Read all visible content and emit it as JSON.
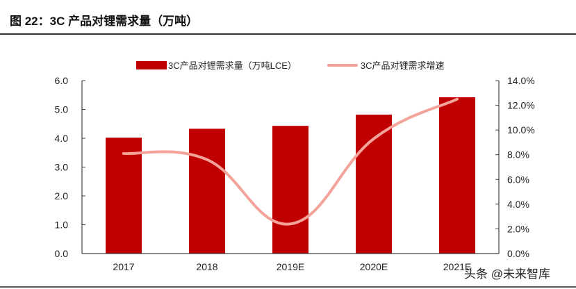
{
  "title": "图 22：3C 产品对锂需求量（万吨）",
  "watermark": "头条 @未来智库",
  "chart_data": {
    "type": "bar+line",
    "categories": [
      "2017",
      "2018",
      "2019E",
      "2020E",
      "2021E"
    ],
    "series": [
      {
        "name": "3C产品对锂需求量（万吨LCE）",
        "type": "bar",
        "axis": "left",
        "values": [
          4.02,
          4.33,
          4.43,
          4.82,
          5.42
        ],
        "color": "#c00000"
      },
      {
        "name": "3C产品对锂需求增速",
        "type": "line",
        "axis": "right",
        "values": [
          8.1,
          7.6,
          2.4,
          9.3,
          12.5
        ],
        "color": "#f4a39a"
      }
    ],
    "y_left": {
      "range": [
        0,
        6
      ],
      "ticks": [
        "0.0",
        "1.0",
        "2.0",
        "3.0",
        "4.0",
        "5.0",
        "6.0"
      ]
    },
    "y_right": {
      "range": [
        0,
        14
      ],
      "unit": "%",
      "ticks": [
        "0.0%",
        "2.0%",
        "4.0%",
        "6.0%",
        "8.0%",
        "10.0%",
        "12.0%",
        "14.0%"
      ]
    },
    "legend": "top",
    "grid": false
  }
}
